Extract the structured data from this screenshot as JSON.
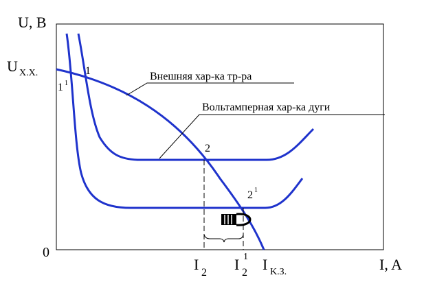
{
  "colors": {
    "curve": "#1f33cc",
    "frame": "#000000",
    "text": "#000000",
    "background": "#ffffff"
  },
  "labels": {
    "y_axis": "U, B",
    "x_axis": "I, A",
    "origin": "0",
    "u_xx_main": "U",
    "u_xx_sub": "X.X.",
    "i_kz_main": "I",
    "i_kz_sub": "K.З.",
    "i2_main": "I",
    "i2_sub": "2",
    "i2p_main": "I",
    "i2p_sub": "2",
    "i2p_sup": "1",
    "external_char": "Внешняя хар-ка тр-ра",
    "arc_char": "Вольтамперная хар-ка дуги",
    "point_1": "1",
    "point_1p_main": "1",
    "point_1p_sup": "1",
    "point_2": "2",
    "point_2p_main": "2",
    "point_2p_sup": "1"
  }
}
